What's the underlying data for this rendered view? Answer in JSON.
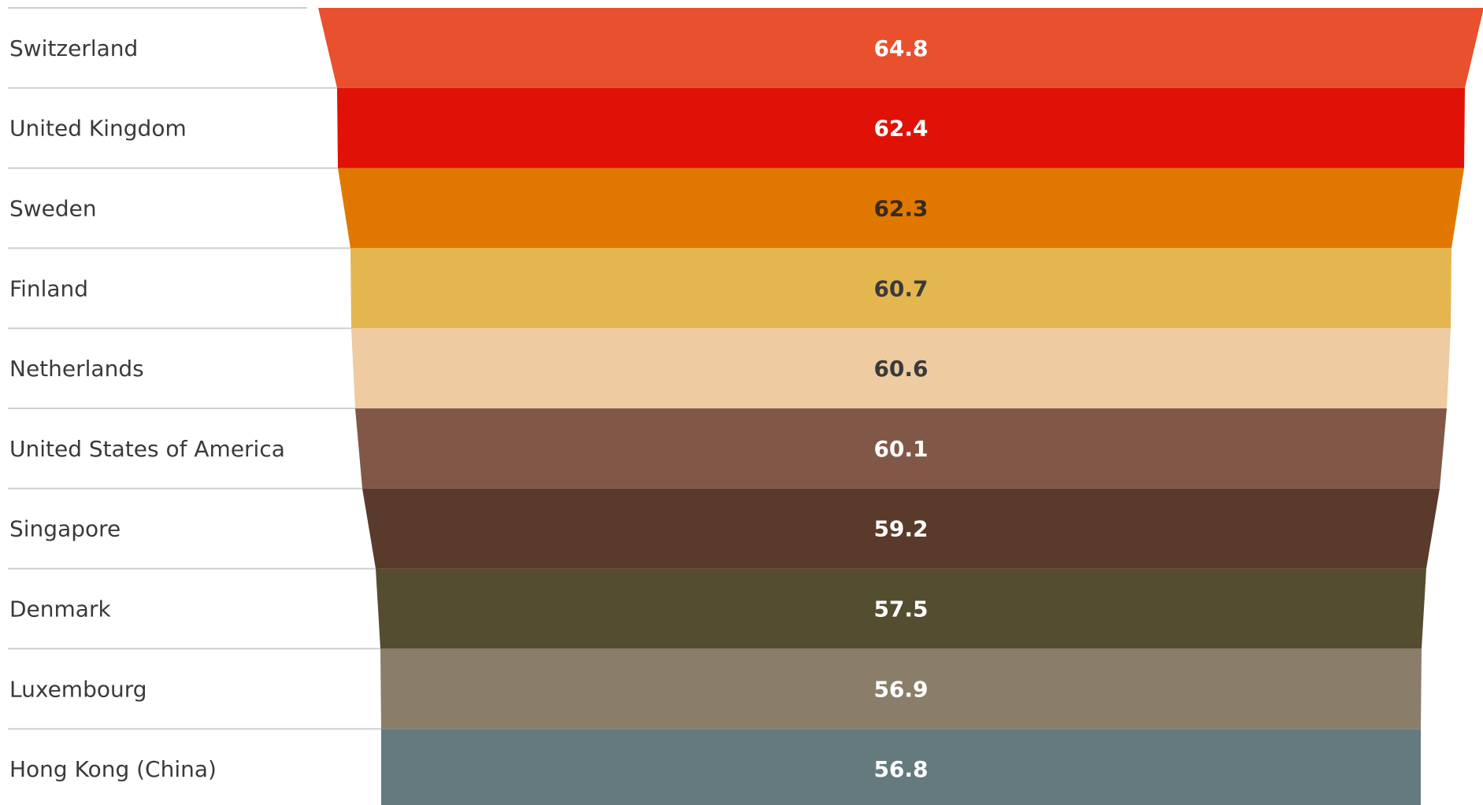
{
  "chart_data": {
    "type": "bar",
    "categories": [
      "Switzerland",
      "United Kingdom",
      "Sweden",
      "Finland",
      "Netherlands",
      "United States of America",
      "Singapore",
      "Denmark",
      "Luxembourg",
      "Hong Kong (China)"
    ],
    "values": [
      64.8,
      62.4,
      62.3,
      60.7,
      60.6,
      60.1,
      59.2,
      57.5,
      56.9,
      56.8
    ],
    "value_labels": [
      "64.8",
      "62.4",
      "62.3",
      "60.7",
      "60.6",
      "60.1",
      "59.2",
      "57.5",
      "56.9",
      "56.8"
    ],
    "colors": [
      "#e8502e",
      "#e01207",
      "#e07800",
      "#e4b650",
      "#eecba0",
      "#815847",
      "#5a3a2b",
      "#554d30",
      "#8a7e6b",
      "#647a7e"
    ],
    "label_colors": [
      "#ffffff",
      "#ffffff",
      "#3a2a1a",
      "#3a3a3a",
      "#3a3a3a",
      "#ffffff",
      "#ffffff",
      "#ffffff",
      "#ffffff",
      "#ffffff"
    ],
    "title": "",
    "xlabel": "",
    "ylabel": ""
  }
}
